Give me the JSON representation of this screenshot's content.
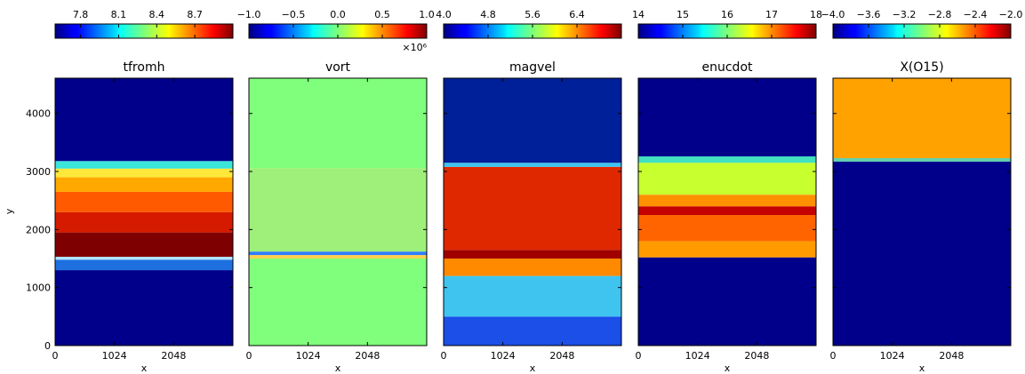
{
  "chart_data": {
    "type": "heatmap",
    "x_range": [
      0,
      3072
    ],
    "y_range": [
      0,
      4608
    ],
    "x_ticks": [
      "0",
      "1024",
      "2048"
    ],
    "x_tick_values": [
      0,
      1024,
      2048
    ],
    "y_ticks": [
      "0",
      "1000",
      "2000",
      "3000",
      "4000"
    ],
    "y_tick_values": [
      0,
      1000,
      2000,
      3000,
      4000
    ],
    "xlabel": "x",
    "ylabel": "y",
    "panels": [
      {
        "title": "tfromh",
        "colorbar": {
          "ticks": [
            "7.8",
            "8.1",
            "8.4",
            "8.7"
          ],
          "min": 7.6,
          "max": 9.0,
          "tick_values": [
            7.8,
            8.1,
            8.4,
            8.7
          ],
          "exponent": ""
        },
        "bands": [
          {
            "y0": 0,
            "y1": 1300,
            "color": "#00008b"
          },
          {
            "y0": 1300,
            "y1": 1480,
            "color": "#1e6fe0"
          },
          {
            "y0": 1480,
            "y1": 1530,
            "color": "#b0e8ff"
          },
          {
            "y0": 1530,
            "y1": 1950,
            "color": "#7f0000"
          },
          {
            "y0": 1950,
            "y1": 2300,
            "color": "#d61a00"
          },
          {
            "y0": 2300,
            "y1": 2650,
            "color": "#ff5a00"
          },
          {
            "y0": 2650,
            "y1": 2900,
            "color": "#ffa800"
          },
          {
            "y0": 2900,
            "y1": 3050,
            "color": "#ffe83a"
          },
          {
            "y0": 3050,
            "y1": 3180,
            "color": "#3ae6d9"
          },
          {
            "y0": 3180,
            "y1": 4608,
            "color": "#00008b"
          }
        ]
      },
      {
        "title": "vort",
        "colorbar": {
          "ticks": [
            "−1.0",
            "−0.5",
            "0.0",
            "0.5",
            "1.0"
          ],
          "min": -1.0,
          "max": 1.0,
          "tick_values": [
            -1.0,
            -0.5,
            0.0,
            0.5,
            1.0
          ],
          "exponent": "×10⁶"
        },
        "bands": [
          {
            "y0": 0,
            "y1": 1500,
            "color": "#80ff7d"
          },
          {
            "y0": 1500,
            "y1": 1560,
            "color": "#ffd24a"
          },
          {
            "y0": 1560,
            "y1": 1620,
            "color": "#2f7dff"
          },
          {
            "y0": 1620,
            "y1": 3060,
            "color": "#9ff07a"
          },
          {
            "y0": 3060,
            "y1": 4608,
            "color": "#80ff7d"
          }
        ]
      },
      {
        "title": "magvel",
        "colorbar": {
          "ticks": [
            "4.0",
            "4.8",
            "5.6",
            "6.4"
          ],
          "min": 4.0,
          "max": 7.2,
          "tick_values": [
            4.0,
            4.8,
            5.6,
            6.4
          ],
          "exponent": ""
        },
        "bands": [
          {
            "y0": 0,
            "y1": 500,
            "color": "#1c4fe8"
          },
          {
            "y0": 500,
            "y1": 1200,
            "color": "#3fc4f0"
          },
          {
            "y0": 1200,
            "y1": 1500,
            "color": "#ff8a00"
          },
          {
            "y0": 1500,
            "y1": 1650,
            "color": "#a00000"
          },
          {
            "y0": 1650,
            "y1": 3080,
            "color": "#e02800"
          },
          {
            "y0": 3080,
            "y1": 3150,
            "color": "#3fc4f0"
          },
          {
            "y0": 3150,
            "y1": 4608,
            "color": "#00209a"
          }
        ]
      },
      {
        "title": "enucdot",
        "colorbar": {
          "ticks": [
            "14",
            "15",
            "16",
            "17",
            "18"
          ],
          "min": 14,
          "max": 18,
          "tick_values": [
            14,
            15,
            16,
            17,
            18
          ],
          "exponent": ""
        },
        "bands": [
          {
            "y0": 0,
            "y1": 1520,
            "color": "#00008b"
          },
          {
            "y0": 1520,
            "y1": 1800,
            "color": "#ff9a00"
          },
          {
            "y0": 1800,
            "y1": 2250,
            "color": "#ff6400"
          },
          {
            "y0": 2250,
            "y1": 2400,
            "color": "#c40000"
          },
          {
            "y0": 2400,
            "y1": 2600,
            "color": "#ff9000"
          },
          {
            "y0": 2600,
            "y1": 3150,
            "color": "#c8ff2e"
          },
          {
            "y0": 3150,
            "y1": 3260,
            "color": "#40e0c0"
          },
          {
            "y0": 3260,
            "y1": 4608,
            "color": "#00008b"
          }
        ]
      },
      {
        "title": "X(O15)",
        "colorbar": {
          "ticks": [
            "−4.0",
            "−3.6",
            "−3.2",
            "−2.8",
            "−2.4",
            "−2.0"
          ],
          "min": -4.0,
          "max": -2.0,
          "tick_values": [
            -4.0,
            -3.6,
            -3.2,
            -2.8,
            -2.4,
            -2.0
          ],
          "exponent": ""
        },
        "bands": [
          {
            "y0": 0,
            "y1": 3170,
            "color": "#00008b"
          },
          {
            "y0": 3170,
            "y1": 3230,
            "color": "#60d0b0"
          },
          {
            "y0": 3230,
            "y1": 4608,
            "color": "#ffa200"
          }
        ]
      }
    ]
  }
}
